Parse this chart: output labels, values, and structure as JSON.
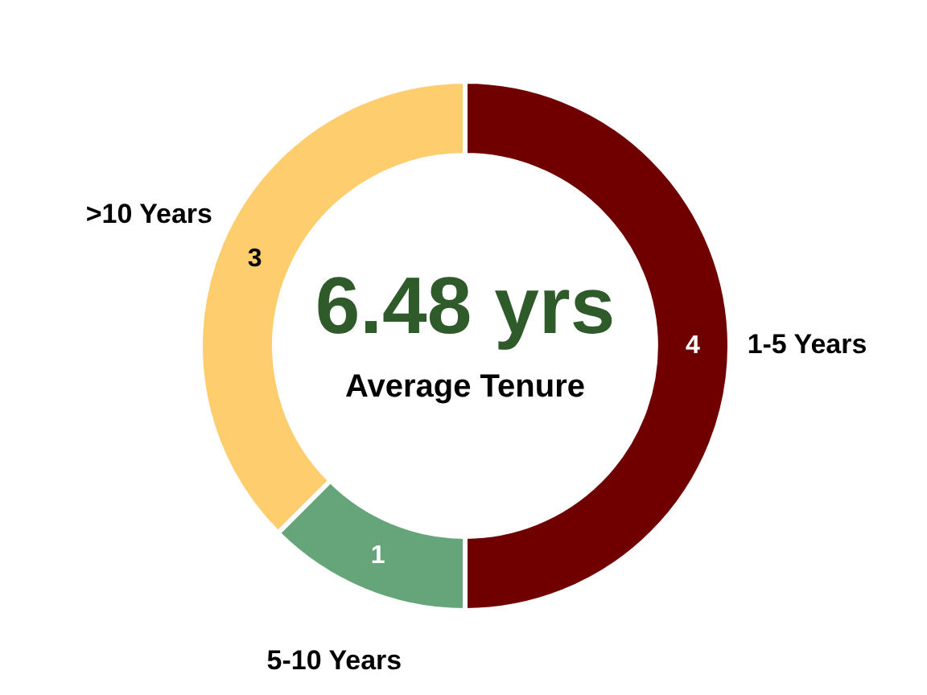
{
  "chart_data": {
    "type": "donut",
    "categories": [
      "1-5 Years",
      "5-10 Years",
      ">10 Years"
    ],
    "values": [
      4,
      1,
      3
    ],
    "colors": [
      "#700000",
      "#66a57a",
      "#fdcd6e"
    ],
    "data_labels": true,
    "legend": false,
    "annotations": [
      "6.48 yrs",
      "Average Tenure"
    ]
  }
}
